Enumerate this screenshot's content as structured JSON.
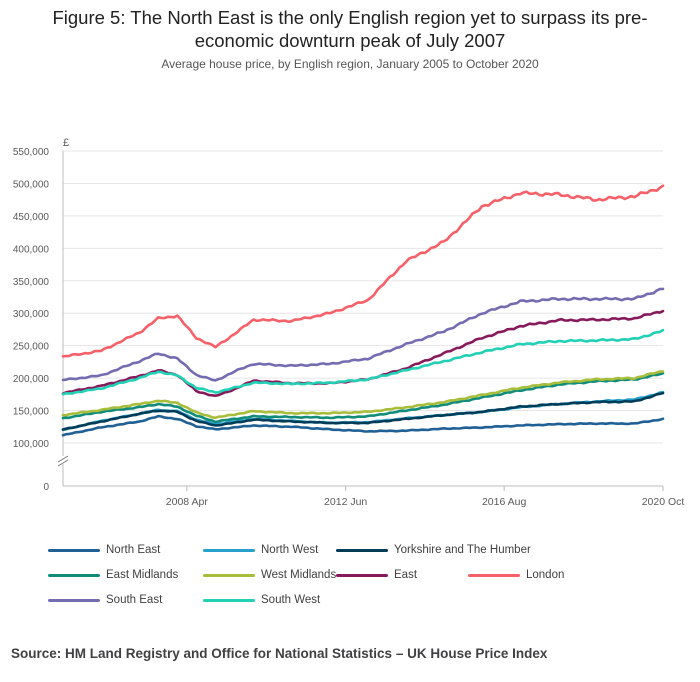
{
  "title": "Figure 5: The North East is the only English region yet to surpass its pre-economic downturn peak of July 2007",
  "subtitle": "Average house price, by English region, January 2005 to October 2020",
  "source": "Source: HM Land Registry and Office for National Statistics – UK House Price Index",
  "chart_data": {
    "type": "line",
    "title": "Figure 5: The North East is the only English region yet to surpass its pre-economic downturn peak of July 2007",
    "subtitle": "Average house price, by English region, January 2005 to October 2020",
    "ylabel": "£",
    "xlabel": "",
    "y_ticks": [
      "550,000",
      "500,000",
      "450,000",
      "400,000",
      "350,000",
      "300,000",
      "250,000",
      "200,000",
      "150,000",
      "100,000",
      "0"
    ],
    "y_tick_values": [
      550000,
      500000,
      450000,
      400000,
      350000,
      300000,
      250000,
      200000,
      150000,
      100000,
      0
    ],
    "x_ticks": [
      "2008 Apr",
      "2012 Jun",
      "2016 Aug",
      "2020 Oct"
    ],
    "x_tick_values": [
      2008.25,
      2012.42,
      2016.58,
      2020.75
    ],
    "xlim": [
      2005.0,
      2020.75
    ],
    "ylim": [
      0,
      550000
    ],
    "axis_break": "between 0 and 100,000",
    "grid": "horizontal",
    "series": [
      {
        "name": "North East",
        "color": "#206095",
        "x": [
          2005,
          2006,
          2007,
          2007.5,
          2008,
          2008.5,
          2009,
          2009.5,
          2010,
          2011,
          2012,
          2013,
          2014,
          2015,
          2016,
          2017,
          2018,
          2019,
          2020,
          2020.75
        ],
        "values": [
          112000,
          124000,
          133000,
          141000,
          137000,
          126000,
          121000,
          124000,
          127000,
          125000,
          121000,
          118000,
          119000,
          122000,
          124000,
          127000,
          129000,
          130000,
          130000,
          137000
        ]
      },
      {
        "name": "North West",
        "color": "#27a0cc",
        "x": [
          2005,
          2006,
          2007,
          2007.5,
          2008,
          2008.5,
          2009,
          2009.5,
          2010,
          2011,
          2012,
          2013,
          2014,
          2015,
          2016,
          2017,
          2018,
          2019,
          2020,
          2020.75
        ],
        "values": [
          120000,
          134000,
          145000,
          151000,
          149000,
          136000,
          129000,
          133000,
          137000,
          134000,
          131000,
          132000,
          138000,
          143000,
          148000,
          155000,
          160000,
          164000,
          167000,
          178000
        ]
      },
      {
        "name": "Yorkshire and The Humber",
        "color": "#003c57",
        "x": [
          2005,
          2006,
          2007,
          2007.5,
          2008,
          2008.5,
          2009,
          2009.5,
          2010,
          2011,
          2012,
          2013,
          2014,
          2015,
          2016,
          2017,
          2018,
          2019,
          2020,
          2020.75
        ],
        "values": [
          121000,
          133000,
          145000,
          150000,
          148000,
          134000,
          127000,
          131000,
          136000,
          133000,
          131000,
          131000,
          137000,
          143000,
          148000,
          156000,
          160000,
          163000,
          164000,
          177000
        ]
      },
      {
        "name": "East Midlands",
        "color": "#118c7b",
        "x": [
          2005,
          2006,
          2007,
          2007.5,
          2008,
          2008.5,
          2009,
          2009.5,
          2010,
          2011,
          2012,
          2013,
          2014,
          2015,
          2016,
          2017,
          2018,
          2019,
          2020,
          2020.75
        ],
        "values": [
          138000,
          148000,
          155000,
          160000,
          156000,
          142000,
          133000,
          137000,
          141000,
          140000,
          139000,
          141000,
          150000,
          159000,
          170000,
          181000,
          190000,
          195000,
          198000,
          207000
        ]
      },
      {
        "name": "West Midlands",
        "color": "#a8bd3a",
        "x": [
          2005,
          2006,
          2007,
          2007.5,
          2008,
          2008.5,
          2009,
          2009.5,
          2010,
          2011,
          2012,
          2013,
          2014,
          2015,
          2016,
          2017,
          2018,
          2019,
          2020,
          2020.75
        ],
        "values": [
          143000,
          151000,
          160000,
          165000,
          162000,
          147000,
          139000,
          144000,
          149000,
          146000,
          146000,
          148000,
          155000,
          163000,
          174000,
          185000,
          193000,
          198000,
          200000,
          211000
        ]
      },
      {
        "name": "East",
        "color": "#871a5b",
        "x": [
          2005,
          2006,
          2007,
          2007.5,
          2008,
          2008.5,
          2009,
          2009.5,
          2010,
          2011,
          2012,
          2013,
          2014,
          2015,
          2016,
          2017,
          2018,
          2019,
          2020,
          2020.75
        ],
        "values": [
          177000,
          188000,
          203000,
          212000,
          205000,
          180000,
          172000,
          183000,
          196000,
          192000,
          192000,
          198000,
          215000,
          238000,
          262000,
          280000,
          289000,
          290000,
          292000,
          304000
        ]
      },
      {
        "name": "London",
        "color": "#f66068",
        "x": [
          2005,
          2006,
          2007,
          2007.5,
          2008,
          2008.5,
          2009,
          2009.5,
          2010,
          2011,
          2012,
          2013,
          2014,
          2015,
          2016,
          2017,
          2018,
          2019,
          2020,
          2020.75
        ],
        "values": [
          233000,
          242000,
          270000,
          292000,
          296000,
          262000,
          248000,
          268000,
          290000,
          288000,
          300000,
          320000,
          380000,
          410000,
          465000,
          485000,
          483000,
          475000,
          480000,
          495000
        ]
      },
      {
        "name": "South East",
        "color": "#746cb1",
        "x": [
          2005,
          2006,
          2007,
          2007.5,
          2008,
          2008.5,
          2009,
          2009.5,
          2010,
          2011,
          2012,
          2013,
          2014,
          2015,
          2016,
          2017,
          2018,
          2019,
          2020,
          2020.75
        ],
        "values": [
          197000,
          204000,
          226000,
          238000,
          230000,
          205000,
          196000,
          210000,
          222000,
          219000,
          222000,
          230000,
          252000,
          272000,
          300000,
          318000,
          322000,
          322000,
          322000,
          338000
        ]
      },
      {
        "name": "South West",
        "color": "#22d0b6",
        "x": [
          2005,
          2006,
          2007,
          2007.5,
          2008,
          2008.5,
          2009,
          2009.5,
          2010,
          2011,
          2012,
          2013,
          2014,
          2015,
          2016,
          2017,
          2018,
          2019,
          2020,
          2020.75
        ],
        "values": [
          175000,
          184000,
          200000,
          210000,
          204000,
          185000,
          178000,
          185000,
          193000,
          191000,
          193000,
          198000,
          212000,
          226000,
          240000,
          252000,
          257000,
          258000,
          260000,
          273000
        ]
      }
    ]
  }
}
